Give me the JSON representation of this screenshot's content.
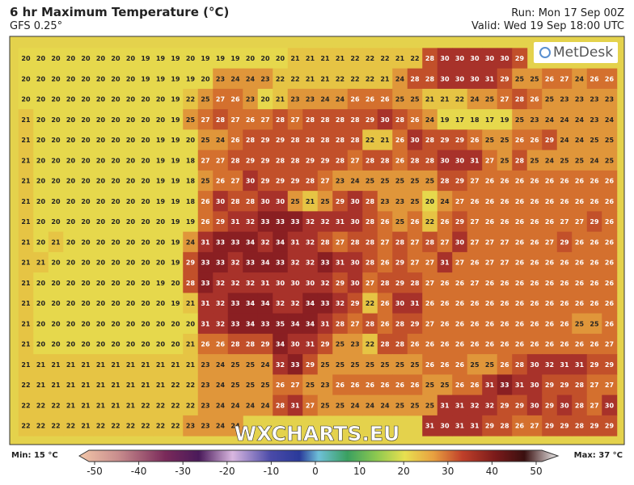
{
  "header": {
    "title": "6 hr Maximum Temperature (°C)",
    "subtitle": "GFS 0.25°",
    "run": "Run: Mon 17 Sep 00Z",
    "valid": "Valid: Wed 19 Sep 18:00 UTC"
  },
  "logo": "MetDesk",
  "watermark": "WXCHARTS.EU",
  "grid": {
    "rows": [
      [
        20,
        20,
        20,
        20,
        20,
        20,
        20,
        20,
        19,
        19,
        19,
        20,
        19,
        19,
        19,
        20,
        20,
        20,
        21,
        21,
        21,
        21,
        22,
        22,
        22,
        21,
        22,
        28,
        30,
        30,
        30,
        30,
        30,
        29,
        null,
        null,
        null,
        null,
        null,
        null
      ],
      [
        20,
        20,
        20,
        20,
        20,
        20,
        20,
        20,
        19,
        19,
        19,
        19,
        20,
        23,
        24,
        24,
        23,
        22,
        22,
        21,
        21,
        22,
        22,
        22,
        21,
        24,
        28,
        28,
        30,
        30,
        30,
        31,
        29,
        25,
        25,
        26,
        27,
        24,
        26,
        26
      ],
      [
        20,
        20,
        20,
        20,
        20,
        20,
        20,
        20,
        20,
        20,
        19,
        22,
        25,
        27,
        26,
        23,
        20,
        21,
        23,
        23,
        24,
        24,
        26,
        26,
        26,
        25,
        25,
        21,
        21,
        22,
        24,
        25,
        27,
        28,
        26,
        25,
        23,
        23,
        23,
        23
      ],
      [
        21,
        20,
        20,
        20,
        20,
        20,
        20,
        20,
        20,
        20,
        19,
        25,
        27,
        28,
        27,
        26,
        27,
        28,
        27,
        28,
        28,
        28,
        28,
        29,
        30,
        28,
        26,
        24,
        19,
        17,
        18,
        17,
        19,
        25,
        23,
        24,
        24,
        24,
        23,
        24
      ],
      [
        21,
        20,
        20,
        20,
        20,
        20,
        20,
        20,
        20,
        19,
        19,
        20,
        25,
        24,
        26,
        28,
        29,
        29,
        28,
        28,
        28,
        28,
        28,
        22,
        21,
        26,
        30,
        28,
        29,
        29,
        26,
        25,
        25,
        26,
        26,
        29,
        24,
        24,
        25,
        25
      ],
      [
        21,
        20,
        20,
        20,
        20,
        20,
        20,
        20,
        20,
        19,
        19,
        18,
        27,
        27,
        28,
        29,
        29,
        28,
        28,
        29,
        29,
        28,
        27,
        28,
        28,
        26,
        28,
        28,
        30,
        30,
        31,
        27,
        25,
        28,
        25,
        24,
        25,
        25,
        24,
        25
      ],
      [
        21,
        20,
        20,
        20,
        20,
        20,
        20,
        20,
        20,
        19,
        19,
        18,
        25,
        26,
        27,
        30,
        29,
        29,
        29,
        28,
        27,
        23,
        24,
        25,
        25,
        25,
        25,
        25,
        28,
        29,
        27,
        26,
        26,
        26,
        26,
        26,
        26,
        26,
        26,
        26
      ],
      [
        21,
        20,
        20,
        20,
        20,
        20,
        20,
        20,
        20,
        19,
        19,
        18,
        26,
        30,
        28,
        28,
        30,
        30,
        25,
        21,
        25,
        29,
        30,
        28,
        23,
        23,
        25,
        20,
        24,
        27,
        26,
        26,
        26,
        26,
        26,
        26,
        26,
        26,
        26,
        26
      ],
      [
        21,
        20,
        20,
        20,
        20,
        20,
        20,
        20,
        20,
        20,
        19,
        19,
        26,
        29,
        31,
        32,
        33,
        33,
        33,
        32,
        32,
        31,
        30,
        28,
        26,
        25,
        26,
        22,
        26,
        29,
        27,
        26,
        26,
        26,
        26,
        26,
        27,
        27,
        29,
        26
      ],
      [
        21,
        20,
        21,
        20,
        20,
        20,
        20,
        20,
        20,
        20,
        19,
        24,
        31,
        33,
        33,
        34,
        32,
        34,
        31,
        32,
        28,
        27,
        28,
        28,
        27,
        28,
        27,
        28,
        27,
        30,
        27,
        27,
        27,
        26,
        26,
        27,
        29,
        26,
        26,
        26
      ],
      [
        21,
        21,
        20,
        20,
        20,
        20,
        20,
        20,
        20,
        20,
        19,
        29,
        33,
        33,
        32,
        33,
        34,
        33,
        32,
        32,
        33,
        31,
        30,
        28,
        26,
        29,
        27,
        27,
        31,
        27,
        26,
        27,
        27,
        26,
        26,
        26,
        26,
        26,
        26,
        26
      ],
      [
        21,
        20,
        20,
        20,
        20,
        20,
        20,
        20,
        20,
        19,
        20,
        28,
        33,
        32,
        32,
        32,
        31,
        30,
        30,
        30,
        32,
        29,
        30,
        27,
        28,
        29,
        28,
        27,
        26,
        26,
        27,
        26,
        26,
        26,
        26,
        26,
        26,
        26,
        26,
        26
      ],
      [
        21,
        20,
        20,
        20,
        20,
        20,
        20,
        20,
        20,
        20,
        19,
        21,
        31,
        32,
        33,
        34,
        34,
        32,
        32,
        34,
        33,
        32,
        29,
        22,
        26,
        30,
        31,
        26,
        26,
        26,
        26,
        26,
        26,
        26,
        26,
        26,
        26,
        26,
        26,
        26
      ],
      [
        21,
        20,
        20,
        20,
        20,
        20,
        20,
        20,
        20,
        20,
        20,
        20,
        31,
        32,
        33,
        34,
        33,
        35,
        34,
        34,
        31,
        28,
        27,
        28,
        26,
        28,
        29,
        27,
        26,
        26,
        26,
        26,
        26,
        26,
        26,
        26,
        26,
        25,
        25,
        26
      ],
      [
        21,
        20,
        20,
        20,
        20,
        20,
        20,
        20,
        20,
        20,
        20,
        21,
        26,
        26,
        28,
        28,
        29,
        34,
        30,
        31,
        29,
        25,
        23,
        22,
        28,
        28,
        26,
        26,
        26,
        26,
        26,
        26,
        26,
        26,
        26,
        26,
        26,
        26,
        26,
        27
      ],
      [
        21,
        21,
        21,
        21,
        21,
        21,
        21,
        21,
        21,
        21,
        21,
        21,
        23,
        24,
        25,
        25,
        24,
        32,
        33,
        29,
        25,
        25,
        25,
        25,
        25,
        25,
        25,
        26,
        26,
        26,
        25,
        25,
        26,
        28,
        30,
        32,
        31,
        31,
        29,
        29
      ],
      [
        22,
        21,
        21,
        21,
        21,
        21,
        21,
        21,
        21,
        21,
        22,
        22,
        23,
        24,
        25,
        25,
        25,
        26,
        27,
        25,
        23,
        26,
        26,
        26,
        26,
        26,
        26,
        25,
        25,
        26,
        26,
        31,
        33,
        31,
        30,
        29,
        29,
        28,
        27,
        27
      ],
      [
        22,
        22,
        22,
        21,
        21,
        21,
        21,
        21,
        22,
        22,
        22,
        22,
        23,
        24,
        24,
        24,
        24,
        28,
        31,
        27,
        25,
        25,
        24,
        24,
        24,
        25,
        25,
        25,
        31,
        31,
        32,
        32,
        29,
        29,
        30,
        29,
        30,
        28,
        27,
        30
      ],
      [
        22,
        22,
        22,
        22,
        21,
        22,
        22,
        22,
        22,
        22,
        22,
        23,
        23,
        24,
        24,
        null,
        null,
        null,
        null,
        null,
        null,
        null,
        null,
        null,
        null,
        null,
        null,
        31,
        30,
        31,
        31,
        29,
        28,
        26,
        27,
        29,
        29,
        28,
        29,
        29
      ]
    ]
  },
  "colorbar": {
    "ticks": [
      -50,
      -40,
      -30,
      -20,
      -10,
      0,
      10,
      20,
      30,
      40,
      50
    ],
    "min_label": "Min: 15 °C",
    "max_label": "Max: 37 °C"
  }
}
